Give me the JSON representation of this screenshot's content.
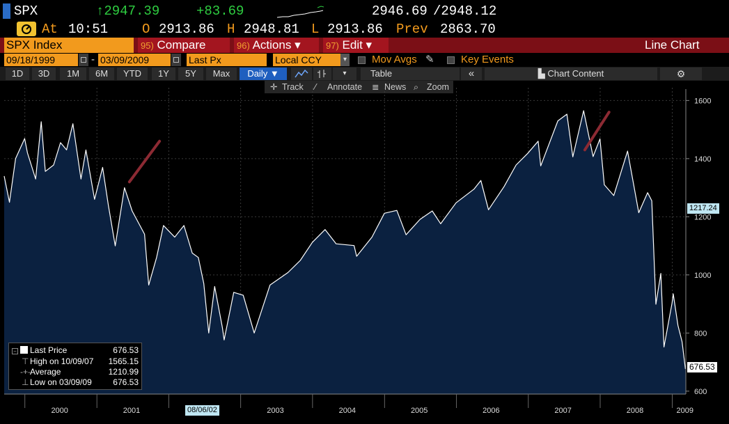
{
  "quote": {
    "symbol": "SPX",
    "last": "↑2947.39",
    "change": "+83.69",
    "bid": "2946.69",
    "ask": "/2948.12",
    "at_label": "At",
    "time": "10:51",
    "open_label": "O",
    "open": "2913.86",
    "high_label": "H",
    "high": "2948.81",
    "low_label": "L",
    "low": "2913.86",
    "prev_label": "Prev",
    "prev": "2863.70"
  },
  "function_bar": {
    "security": "SPX Index",
    "compare_num": "95)",
    "compare": "Compare",
    "actions_num": "96)",
    "actions": "Actions ▾",
    "edit_num": "97)",
    "edit": "Edit ▾",
    "title": "Line Chart"
  },
  "settings": {
    "start_date": "09/18/1999",
    "dash": "-",
    "end_date": "03/09/2009",
    "field": "Last Px",
    "currency": "Local CCY",
    "mov_avgs": "Mov Avgs",
    "key_events": "Key Events"
  },
  "range_buttons": [
    "1D",
    "3D",
    "1M",
    "6M",
    "YTD",
    "1Y",
    "5Y",
    "Max"
  ],
  "frequency": "Daily ▼",
  "table_label": "Table",
  "chart_content": "Chart Content",
  "tools": {
    "track": "Track",
    "annotate": "Annotate",
    "news": "News",
    "zoom": "Zoom"
  },
  "colors": {
    "up": "#2ecc40",
    "amber": "#f29a1d",
    "red_bar": "#7b0f16",
    "area_fill": "#0b2140",
    "line": "#ffffff",
    "annotation": "#8c2a33"
  },
  "legend": {
    "last_price_label": "Last Price",
    "last_price": "676.53",
    "high_label": "High on 10/09/07",
    "high": "1565.15",
    "average_label": "Average",
    "average": "1210.99",
    "low_label": "Low on 03/09/09",
    "low": "676.53"
  },
  "hover_tags": {
    "price": "1217.24",
    "date": "08/06/02"
  },
  "chart_data": {
    "type": "area",
    "title": "",
    "xlabel": "",
    "ylabel": "",
    "ylim": [
      590,
      1620
    ],
    "y_ticks": [
      600,
      800,
      1000,
      1200,
      1400,
      1600
    ],
    "x_year_labels": [
      "2000",
      "2001",
      "2002",
      "2003",
      "2004",
      "2005",
      "2006",
      "2007",
      "2008",
      "2009"
    ],
    "last_value_label": "676.53",
    "series": [
      {
        "x": [
          "1999-09-18",
          "1999-10-15",
          "1999-11-15",
          "1999-12-31",
          "2000-01-14",
          "2000-02-25",
          "2000-03-24",
          "2000-04-14",
          "2000-05-26",
          "2000-06-30",
          "2000-07-31",
          "2000-09-01",
          "2000-10-12",
          "2000-11-06",
          "2000-12-20",
          "2001-01-30",
          "2001-02-28",
          "2001-04-04",
          "2001-05-21",
          "2001-06-29",
          "2001-08-31",
          "2001-09-21",
          "2001-10-31",
          "2001-12-05",
          "2002-01-31",
          "2002-03-19",
          "2002-04-30",
          "2002-05-31",
          "2002-06-28",
          "2002-07-23",
          "2002-08-22",
          "2002-09-30",
          "2002-10-09",
          "2002-11-27",
          "2003-01-14",
          "2003-03-11",
          "2003-05-30",
          "2003-08-29",
          "2003-10-31",
          "2003-12-31",
          "2004-03-05",
          "2004-04-30",
          "2004-07-30",
          "2004-08-12",
          "2004-10-29",
          "2004-12-31",
          "2005-03-04",
          "2005-04-20",
          "2005-06-30",
          "2005-08-31",
          "2005-10-13",
          "2005-12-30",
          "2006-03-31",
          "2006-05-05",
          "2006-06-13",
          "2006-08-31",
          "2006-10-31",
          "2006-12-29",
          "2007-02-20",
          "2007-03-05",
          "2007-05-31",
          "2007-07-16",
          "2007-08-15",
          "2007-10-09",
          "2007-11-26",
          "2007-12-31",
          "2008-01-22",
          "2008-03-10",
          "2008-05-19",
          "2008-07-15",
          "2008-08-29",
          "2008-09-19",
          "2008-10-10",
          "2008-11-04",
          "2008-11-20",
          "2008-12-31",
          "2009-01-06",
          "2009-01-30",
          "2009-02-20",
          "2009-03-09"
        ],
        "values": [
          1340,
          1250,
          1400,
          1469,
          1420,
          1330,
          1527,
          1356,
          1378,
          1455,
          1430,
          1520,
          1330,
          1430,
          1260,
          1370,
          1240,
          1100,
          1300,
          1220,
          1140,
          965,
          1060,
          1170,
          1130,
          1170,
          1075,
          1060,
          970,
          800,
          960,
          820,
          776,
          940,
          930,
          800,
          965,
          1008,
          1050,
          1112,
          1156,
          1107,
          1101,
          1064,
          1130,
          1212,
          1222,
          1138,
          1191,
          1220,
          1176,
          1248,
          1295,
          1325,
          1224,
          1304,
          1378,
          1418,
          1460,
          1375,
          1530,
          1553,
          1406,
          1565,
          1407,
          1468,
          1310,
          1273,
          1426,
          1214,
          1283,
          1255,
          899,
          1005,
          752,
          903,
          935,
          826,
          770,
          676.53
        ]
      }
    ],
    "annotations": [
      {
        "from": [
          "2001-06-15",
          1320
        ],
        "to": [
          "2001-11-15",
          1460
        ]
      },
      {
        "from": [
          "2007-10-15",
          1430
        ],
        "to": [
          "2008-02-15",
          1560
        ]
      }
    ]
  }
}
